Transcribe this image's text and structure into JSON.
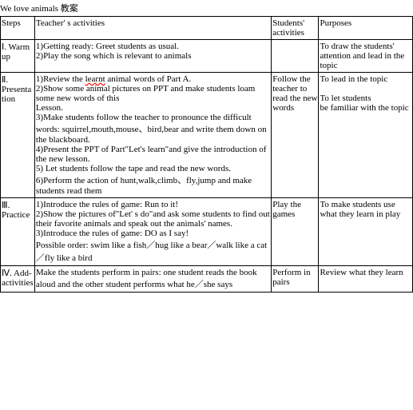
{
  "title": "We love animals 教案",
  "header": {
    "steps": "Steps",
    "teacher": "Teacher' s  activities",
    "students": "Students'  activities",
    "purposes": "Purposes"
  },
  "rows": [
    {
      "step": "Ⅰ. Warm  up",
      "teacher": "1)Getting ready: Greet students as usual.\n2)Play the song which is relevant to animals",
      "students": "",
      "purpose": "To draw the students' attention and lead in  the topic"
    },
    {
      "step": "Ⅱ. Presentation",
      "teacher_pre": "1)Review the ",
      "teacher_wavy": "learnt",
      "teacher_post": " animal words of  Part A.\n2)Show some animal pictures on PPT and make students loam some new words of this\nLesson.\n3)Make students follow the teacher to pronounce the difficult words: squirrel,mouth,mouse、bird,bear and write them down on the blackboard.\n4)Present the PPT  of Part\"Let's  learn\"and give the introduction of  the new lesson.\n5) Let students follow the tape and read the new words.\n6)Perform the action of hunt,walk,climb、fly,jump and make students read them",
      "students": "Follow the teacher to read the new words",
      "purpose": "To  lead  in  the  topic\n\nTo let students\nbe  familiar  with the topic"
    },
    {
      "step": "Ⅲ. Practice",
      "teacher": "1)Introduce the rules of  game: Run to it!\n2)Show the pictures of\"Let' s  do\"and ask some students to find out their favorite animals and speak out the animals'   names.\n3)Introduce the rules of game: DO as I say!\nPossible order: swim like a fish／hug like a  bear／walk  like a cat／fly  like a  bird",
      "students": "Play the games",
      "purpose": "To make students use  what they learn in play"
    },
    {
      "step": "Ⅳ. Add-activities",
      "teacher": "Make the students perform in pairs: one student reads the book aloud and the other student  performs what he／she says",
      "students": "Perform in pairs",
      "purpose": "Review   what they  learn"
    }
  ]
}
